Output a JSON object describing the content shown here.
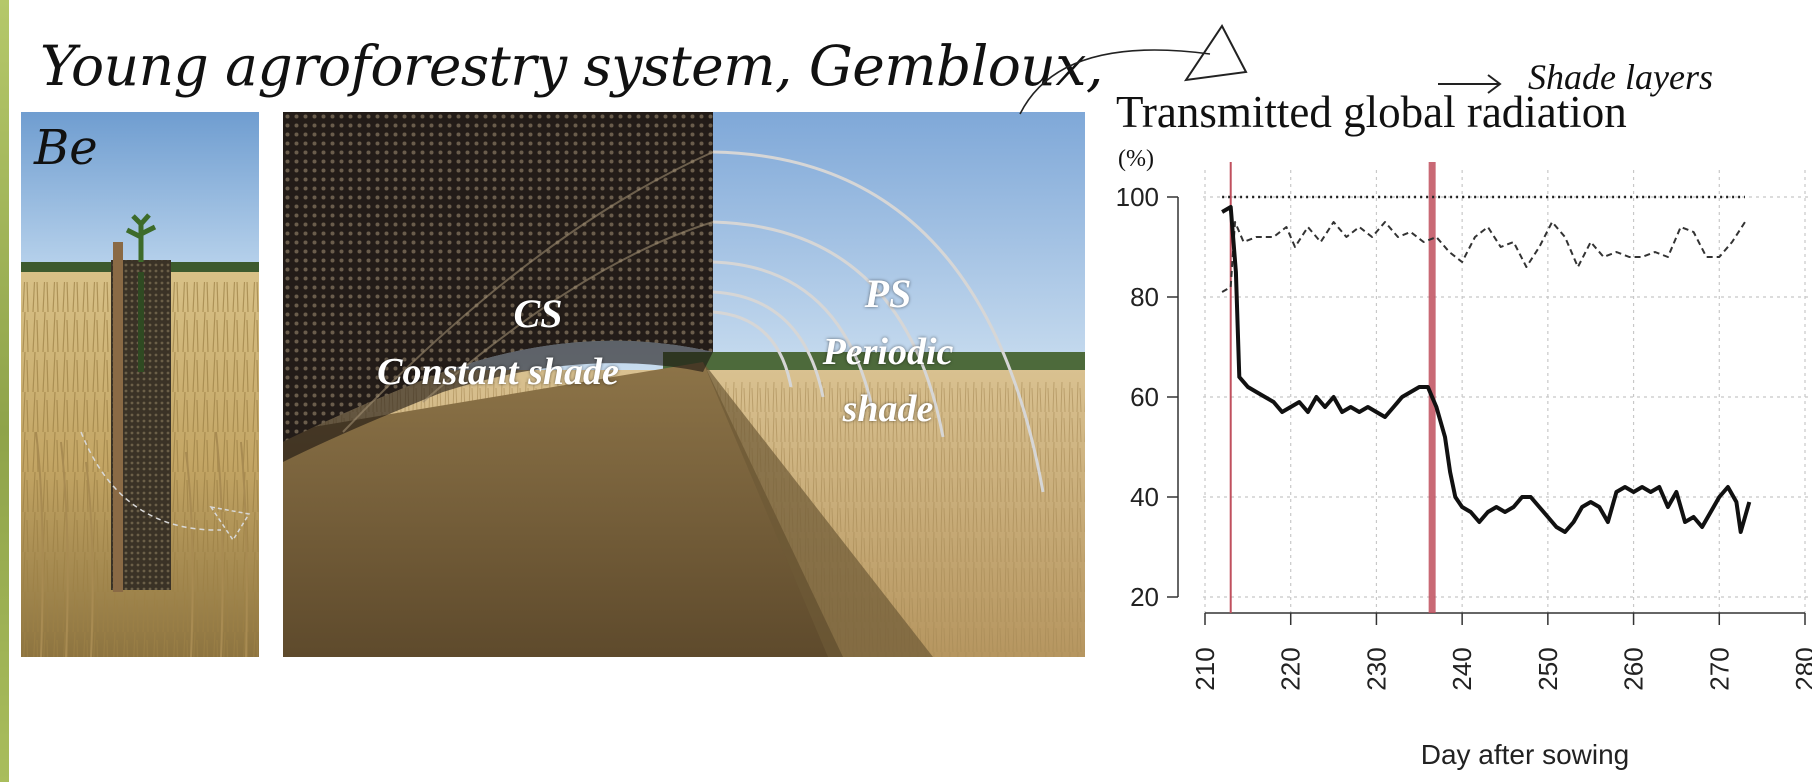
{
  "slide": {
    "title_line1": "Young agroforestry system, Gembloux,",
    "title_line2": "Be",
    "photo_labels": {
      "cs_abbr": "CS",
      "cs_full": "Constant shade",
      "ps_abbr": "PS",
      "ps_line2": "Periodic",
      "ps_line3": "shade"
    },
    "shade_layers_label": "Shade layers",
    "colors": {
      "sky": "#8fb6e0",
      "wheat": "#c9ad76",
      "net": "#2a2320",
      "event_line": "#c0505e",
      "arrow": "#222222"
    },
    "icons": [
      "curved-arrow-icon",
      "triangle-icon",
      "right-arrow-icon"
    ]
  },
  "chart_data": {
    "type": "line",
    "title": "Transmitted global radiation",
    "subtitle": "(%)",
    "xlabel": "Day after sowing",
    "ylabel": "",
    "xlim": [
      210,
      280
    ],
    "ylim": [
      20,
      100
    ],
    "x_ticks": [
      210,
      220,
      230,
      240,
      250,
      260,
      270,
      280
    ],
    "y_ticks": [
      20,
      40,
      60,
      80,
      100
    ],
    "grid": true,
    "vertical_markers": [
      213,
      236.5
    ],
    "series": [
      {
        "style": "dotted",
        "points": [
          [
            212,
            100
          ],
          [
            273,
            100
          ]
        ]
      },
      {
        "style": "dashed",
        "points": [
          [
            212,
            81
          ],
          [
            213,
            82
          ],
          [
            213.5,
            95
          ],
          [
            214.5,
            91
          ],
          [
            216,
            92
          ],
          [
            218,
            92
          ],
          [
            219.5,
            94
          ],
          [
            220.5,
            90
          ],
          [
            222,
            94
          ],
          [
            223.5,
            91
          ],
          [
            225,
            95
          ],
          [
            226.5,
            92
          ],
          [
            228,
            94
          ],
          [
            229.5,
            92
          ],
          [
            231,
            95
          ],
          [
            232.5,
            92
          ],
          [
            234,
            93
          ],
          [
            235.5,
            91
          ],
          [
            237,
            92
          ],
          [
            238.5,
            89
          ],
          [
            240,
            87
          ],
          [
            241.5,
            92
          ],
          [
            243,
            94
          ],
          [
            244.5,
            90
          ],
          [
            246,
            91
          ],
          [
            247.5,
            86
          ],
          [
            249,
            90
          ],
          [
            250.5,
            95
          ],
          [
            252,
            92
          ],
          [
            253.5,
            86
          ],
          [
            255,
            91
          ],
          [
            256.5,
            88
          ],
          [
            258,
            89
          ],
          [
            259.5,
            88
          ],
          [
            261,
            88
          ],
          [
            262.5,
            89
          ],
          [
            264,
            88
          ],
          [
            265.5,
            94
          ],
          [
            267,
            93
          ],
          [
            268.5,
            88
          ],
          [
            270,
            88
          ],
          [
            271.5,
            91
          ],
          [
            273,
            95
          ]
        ]
      },
      {
        "style": "solid",
        "points": [
          [
            212,
            97
          ],
          [
            213,
            98
          ],
          [
            213.6,
            85
          ],
          [
            214,
            64
          ],
          [
            215,
            62
          ],
          [
            216,
            61
          ],
          [
            217,
            60
          ],
          [
            218,
            59
          ],
          [
            219,
            57
          ],
          [
            220,
            58
          ],
          [
            221,
            59
          ],
          [
            222,
            57
          ],
          [
            223,
            60
          ],
          [
            224,
            58
          ],
          [
            225,
            60
          ],
          [
            226,
            57
          ],
          [
            227,
            58
          ],
          [
            228,
            57
          ],
          [
            229,
            58
          ],
          [
            230,
            57
          ],
          [
            231,
            56
          ],
          [
            232,
            58
          ],
          [
            233,
            60
          ],
          [
            234,
            61
          ],
          [
            235,
            62
          ],
          [
            236,
            62
          ],
          [
            236.5,
            60
          ],
          [
            237,
            58
          ],
          [
            238,
            52
          ],
          [
            238.6,
            45
          ],
          [
            239.2,
            40
          ],
          [
            240,
            38
          ],
          [
            241,
            37
          ],
          [
            242,
            35
          ],
          [
            243,
            37
          ],
          [
            244,
            38
          ],
          [
            245,
            37
          ],
          [
            246,
            38
          ],
          [
            247,
            40
          ],
          [
            248,
            40
          ],
          [
            249,
            38
          ],
          [
            250,
            36
          ],
          [
            251,
            34
          ],
          [
            252,
            33
          ],
          [
            253,
            35
          ],
          [
            254,
            38
          ],
          [
            255,
            39
          ],
          [
            256,
            38
          ],
          [
            257,
            35
          ],
          [
            258,
            41
          ],
          [
            259,
            42
          ],
          [
            260,
            41
          ],
          [
            261,
            42
          ],
          [
            262,
            41
          ],
          [
            263,
            42
          ],
          [
            264,
            38
          ],
          [
            265,
            41
          ],
          [
            266,
            35
          ],
          [
            267,
            36
          ],
          [
            268,
            34
          ],
          [
            269,
            37
          ],
          [
            270,
            40
          ],
          [
            271,
            42
          ],
          [
            272,
            39
          ],
          [
            272.5,
            33
          ],
          [
            273,
            36
          ],
          [
            273.5,
            39
          ]
        ]
      }
    ]
  }
}
